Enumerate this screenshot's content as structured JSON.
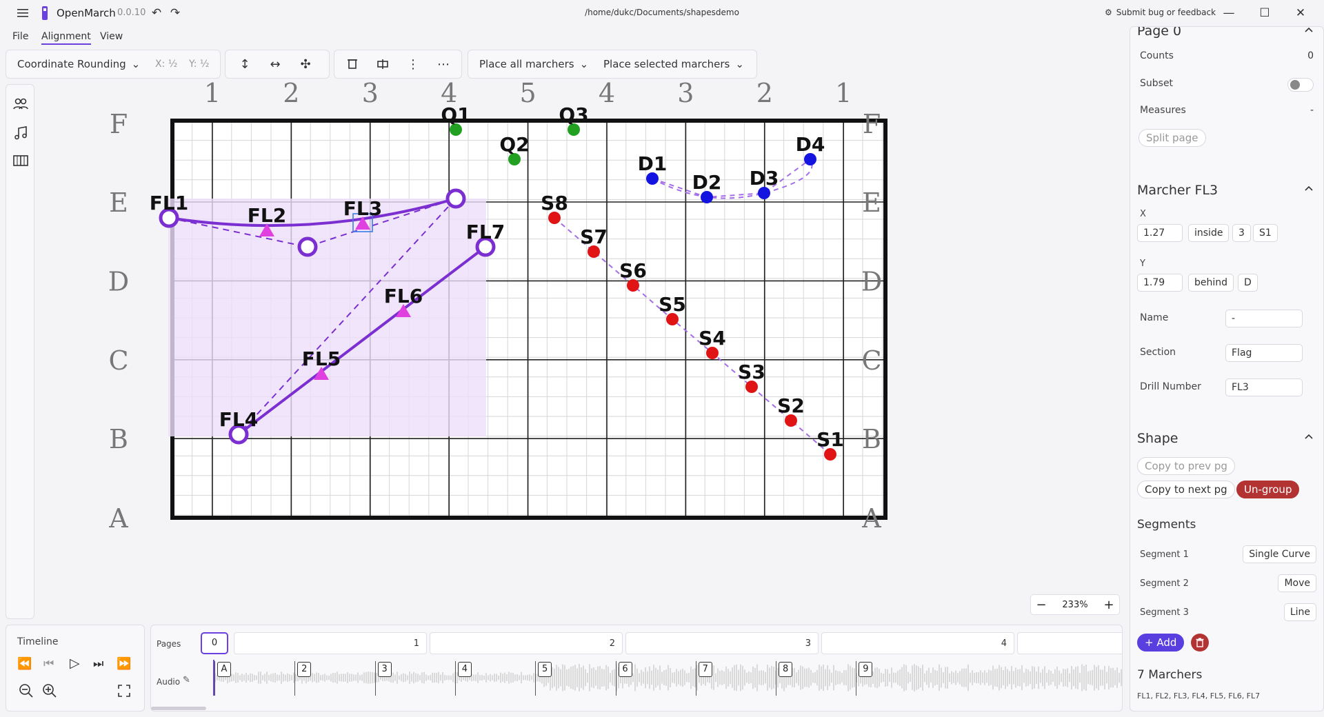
{
  "app": {
    "name": "OpenMarch",
    "version": "0.0.10",
    "file_path": "/home/dukc/Documents/shapesdemo",
    "feedback_label": "Submit bug or feedback"
  },
  "menu": [
    "File",
    "Alignment",
    "View"
  ],
  "toolbar": {
    "rounding_label": "Coordinate Rounding",
    "x_round": "X: ½",
    "y_round": "Y: ½",
    "place_all": "Place all marchers",
    "place_selected": "Place selected marchers"
  },
  "field": {
    "top_yard_labels": [
      "1",
      "2",
      "3",
      "4",
      "5",
      "4",
      "3",
      "2",
      "1"
    ],
    "row_labels": [
      "F",
      "E",
      "D",
      "C",
      "B",
      "A"
    ],
    "zoom": "233%"
  },
  "marchers": [
    {
      "label": "Q1",
      "kind": "green"
    },
    {
      "label": "Q2",
      "kind": "green"
    },
    {
      "label": "Q3",
      "kind": "green"
    },
    {
      "label": "D1",
      "kind": "blue"
    },
    {
      "label": "D2",
      "kind": "blue"
    },
    {
      "label": "D3",
      "kind": "blue"
    },
    {
      "label": "D4",
      "kind": "blue"
    },
    {
      "label": "S1",
      "kind": "red"
    },
    {
      "label": "S2",
      "kind": "red"
    },
    {
      "label": "S3",
      "kind": "red"
    },
    {
      "label": "S4",
      "kind": "red"
    },
    {
      "label": "S5",
      "kind": "red"
    },
    {
      "label": "S6",
      "kind": "red"
    },
    {
      "label": "S7",
      "kind": "red"
    },
    {
      "label": "S8",
      "kind": "red"
    },
    {
      "label": "FL1",
      "kind": "purple-ring"
    },
    {
      "label": "FL2",
      "kind": "magenta-triangle"
    },
    {
      "label": "FL3",
      "kind": "magenta-triangle-selected"
    },
    {
      "label": "FL4",
      "kind": "purple-ring"
    },
    {
      "label": "FL5",
      "kind": "magenta-triangle"
    },
    {
      "label": "FL6",
      "kind": "magenta-triangle"
    },
    {
      "label": "FL7",
      "kind": "purple-ring"
    }
  ],
  "colors": {
    "accent": "#6b3fe0",
    "shape_line": "#7b2fd0",
    "marker_magenta": "#e040e0",
    "green": "#22a022",
    "blue": "#1414e0",
    "red": "#e01414",
    "danger": "#b33232",
    "selection_fill": "#ecdefa"
  },
  "panel": {
    "page_title": "Page 0",
    "counts_label": "Counts",
    "counts_value": "0",
    "subset_label": "Subset",
    "measures_label": "Measures",
    "measures_value": "-",
    "split_page": "Split page",
    "marcher_title": "Marcher FL3",
    "x_label": "X",
    "x_value": "1.27",
    "x_rel": "inside",
    "x_yard": "3",
    "x_side": "S1",
    "y_label": "Y",
    "y_value": "1.79",
    "y_rel": "behind",
    "y_line": "D",
    "name_label": "Name",
    "name_value": "-",
    "section_label": "Section",
    "section_value": "Flag",
    "drill_label": "Drill Number",
    "drill_value": "FL3",
    "shape_title": "Shape",
    "copy_prev": "Copy to prev pg",
    "copy_next": "Copy to next pg",
    "ungroup": "Un-group",
    "segments_title": "Segments",
    "segments": [
      {
        "label": "Segment 1",
        "value": "Single Curve"
      },
      {
        "label": "Segment 2",
        "value": "Move"
      },
      {
        "label": "Segment 3",
        "value": "Line"
      }
    ],
    "add_label": "+ Add",
    "marchers_count": "7 Marchers",
    "marchers_list": "FL1, FL2, FL3, FL4, FL5, FL6, FL7"
  },
  "timeline": {
    "title": "Timeline",
    "pages_label": "Pages",
    "audio_label": "Audio",
    "current_page": "0",
    "page_numbers": [
      "1",
      "2",
      "3",
      "4"
    ],
    "beat_labels": [
      "A",
      "2",
      "3",
      "4",
      "5",
      "6",
      "7",
      "8",
      "9"
    ]
  }
}
